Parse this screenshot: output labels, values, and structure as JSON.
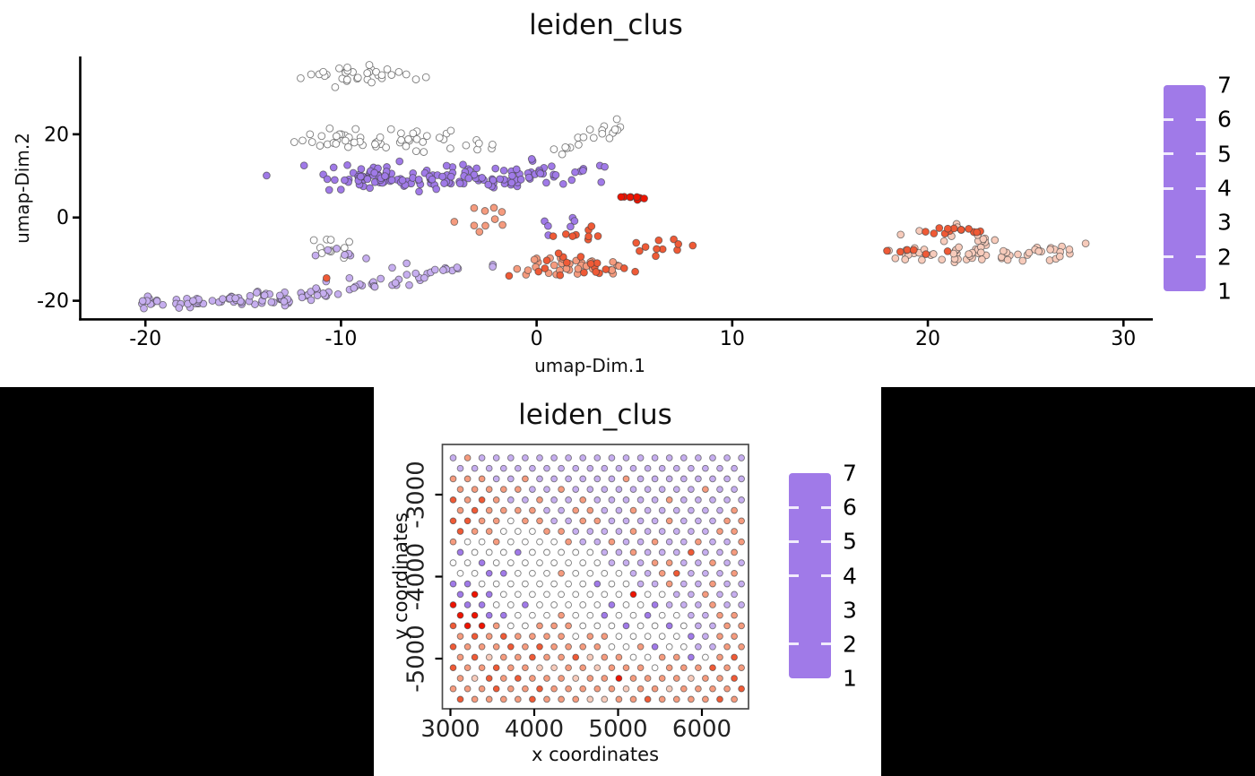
{
  "page": {
    "background": "#ffffff",
    "bottom_panel_background": "#000000"
  },
  "colormap": {
    "1": "#a07ae8",
    "2": "#c6aeef",
    "3": "#ffffff",
    "4": "#f7cbbb",
    "5": "#f59b7e",
    "6": "#ef5a36",
    "7": "#ee1300"
  },
  "chart_data": [
    {
      "type": "scatter",
      "title": "leiden_clus",
      "xlabel": "umap-Dim.1",
      "ylabel": "umap-Dim.2",
      "xlim": [
        -23.4,
        31.5
      ],
      "ylim": [
        -24.6,
        38.7
      ],
      "xticks": [
        -20,
        -10,
        0,
        10,
        20,
        30
      ],
      "yticks": [
        -20,
        0,
        20
      ],
      "grid": false,
      "legend": {
        "position": "right",
        "values": [
          7,
          6,
          5,
          4,
          3,
          2,
          1
        ],
        "tick_dashes": [
          6,
          5,
          4,
          2
        ],
        "vmin": 1,
        "vmax": 7
      },
      "clusters": [
        {
          "v": 3,
          "n": 34,
          "c": [
            -9.3,
            34.6
          ],
          "s": [
            1.5,
            1.0
          ]
        },
        {
          "v": 3,
          "n": 46,
          "c": [
            -8.6,
            18.8
          ],
          "s": [
            2.3,
            1.3
          ]
        },
        {
          "v": 3,
          "n": 9,
          "c": [
            -4.6,
            16.8
          ],
          "s": [
            1.5,
            1.1
          ]
        },
        {
          "v": 3,
          "n": 20,
          "seg": [
            [
              0.8,
              15.2
            ],
            [
              4.4,
              22.3
            ]
          ],
          "s": [
            0.55,
            0.8
          ]
        },
        {
          "v": 1,
          "n": 120,
          "seg": [
            [
              -10.6,
              10.2
            ],
            [
              1.0,
              9.6
            ]
          ],
          "s": [
            1.25,
            1.5
          ]
        },
        {
          "v": 1,
          "n": 22,
          "c": [
            -8.9,
            9.0
          ],
          "s": [
            1.3,
            1.4
          ]
        },
        {
          "v": 1,
          "n": 14,
          "c": [
            0.9,
            11.8
          ],
          "s": [
            1.3,
            1.5
          ]
        },
        {
          "v": 1,
          "n": 6,
          "c": [
            1.3,
            -1.0
          ],
          "s": [
            0.8,
            1.6
          ]
        },
        {
          "v": 7,
          "n": 8,
          "seg": [
            [
              3.9,
              5.2
            ],
            [
              5.5,
              4.2
            ]
          ],
          "s": [
            0.25,
            0.25
          ]
        },
        {
          "v": 5,
          "n": 10,
          "c": [
            -2.5,
            -1.5
          ],
          "s": [
            0.8,
            1.7
          ]
        },
        {
          "v": 6,
          "n": 9,
          "c": [
            1.7,
            -4.2
          ],
          "s": [
            0.9,
            1.0
          ]
        },
        {
          "v": 5,
          "n": 34,
          "c": [
            1.2,
            -11.6
          ],
          "s": [
            1.6,
            1.5
          ]
        },
        {
          "v": 6,
          "n": 18,
          "c": [
            2.0,
            -12.4
          ],
          "s": [
            1.6,
            1.4
          ]
        },
        {
          "v": 6,
          "n": 11,
          "c": [
            6.1,
            -7.4
          ],
          "s": [
            1.0,
            1.2
          ]
        },
        {
          "v": 4,
          "n": 62,
          "seg": [
            [
              18.3,
              -8.8
            ],
            [
              27.6,
              -8.1
            ]
          ],
          "s": [
            0.8,
            0.95
          ]
        },
        {
          "v": 4,
          "n": 14,
          "c": [
            21.6,
            -4.8
          ],
          "s": [
            1.1,
            1.2
          ]
        },
        {
          "v": 6,
          "n": 13,
          "c": [
            21.1,
            -3.1
          ],
          "s": [
            1.3,
            0.8
          ]
        },
        {
          "v": 6,
          "n": 6,
          "c": [
            19.2,
            -8.6
          ],
          "s": [
            0.9,
            0.5
          ]
        },
        {
          "v": 2,
          "n": 58,
          "seg": [
            [
              -20.6,
              -20.8
            ],
            [
              -13.5,
              -19.6
            ]
          ],
          "s": [
            0.8,
            0.85
          ]
        },
        {
          "v": 2,
          "n": 46,
          "seg": [
            [
              -13.5,
              -19.4
            ],
            [
              -6.2,
              -13.8
            ]
          ],
          "s": [
            0.8,
            0.8
          ]
        },
        {
          "v": 2,
          "n": 10,
          "seg": [
            [
              -5.6,
              -13.2
            ],
            [
              -2.0,
              -11.4
            ]
          ],
          "s": [
            0.4,
            0.4
          ]
        },
        {
          "v": 6,
          "n": 1,
          "c": [
            -10.8,
            -14.6
          ],
          "s": [
            0.05,
            0.05
          ]
        },
        {
          "v": 3,
          "n": 11,
          "c": [
            -10.4,
            -6.8
          ],
          "s": [
            0.8,
            2.0
          ]
        },
        {
          "v": 2,
          "n": 8,
          "c": [
            -9.7,
            -9.8
          ],
          "s": [
            0.9,
            1.4
          ]
        }
      ]
    },
    {
      "type": "scatter",
      "subtype": "spatial-hexgrid",
      "title": "leiden_clus",
      "xlabel": "x coordinates",
      "ylabel": "y coordinates",
      "xlim": [
        2904,
        6556
      ],
      "ylim": [
        -5612,
        -2388
      ],
      "xticks": [
        3000,
        4000,
        5000,
        6000
      ],
      "yticks": [
        -3000,
        -4000,
        -5000
      ],
      "grid": false,
      "legend": {
        "position": "right",
        "values": [
          7,
          6,
          5,
          4,
          3,
          2,
          1
        ],
        "tick_dashes": [
          6,
          5,
          4,
          2
        ],
        "vmin": 1,
        "vmax": 7
      },
      "grid_spec": {
        "x0": 3032,
        "y0": -2552,
        "dx": 172,
        "dy": -128,
        "row_offset": 86,
        "cols": 21,
        "rows": 24
      },
      "spot_values_by_row": [
        "252222222222222222222",
        "222222222222222222222",
        "555225222222522222222",
        "555552252222222225222",
        "656522522522222522222",
        "565555225522522222252",
        "665535522552222522255",
        "655333552222522222555",
        "533533335225225225225",
        "133313333322522262255",
        "331333333332225522522",
        "331133353333225622255",
        "113333333313322522522",
        "171333333333733225225",
        "711331333331331222522",
        "771133353313313322556",
        "677533555333133132255",
        "565655553553333312556",
        "655565655553351332255",
        "564556556455335513565",
        "655655445545553555655",
        "546565554557555545565",
        "555655655555455455556",
        "655556555445565555655"
      ]
    }
  ]
}
